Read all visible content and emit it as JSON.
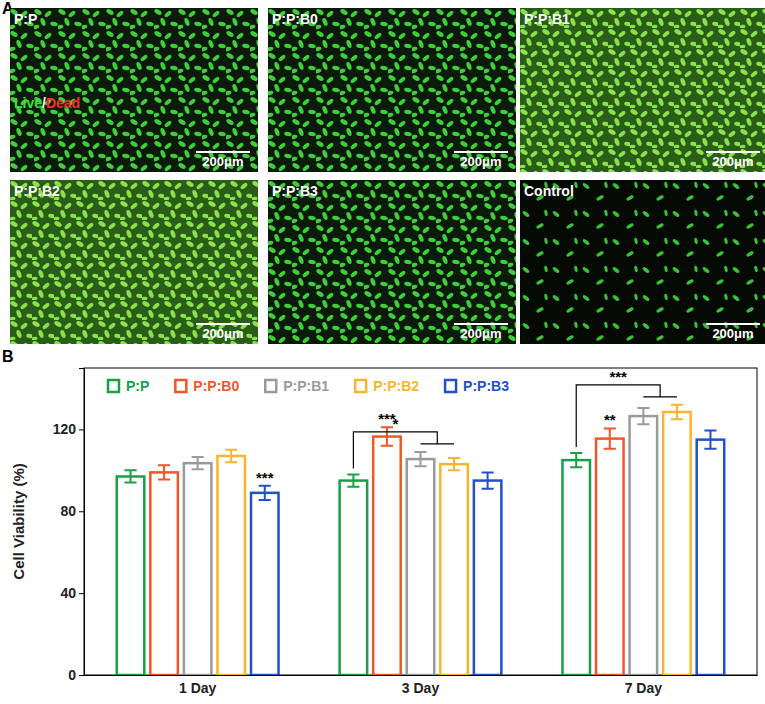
{
  "panel_labels": [
    "A",
    "B"
  ],
  "images": {
    "tiles": [
      "P:P",
      "P:P:B0",
      "P:P:B1",
      "P:P:B2",
      "P:P:B3",
      "Control"
    ],
    "stain": {
      "live": "Live",
      "separator": "/",
      "dead": "Dead"
    },
    "scale_bar": "200μm"
  },
  "chart_data": {
    "type": "bar",
    "y_label": "Cell Viability (%)",
    "categories": [
      "1 Day",
      "3 Day",
      "7 Day"
    ],
    "series": [
      {
        "name": "P:P",
        "color": "#16a047",
        "values": [
          97,
          95,
          105
        ],
        "errors": [
          3,
          3,
          3.5
        ]
      },
      {
        "name": "P:P:B0",
        "color": "#f0562a",
        "values": [
          99,
          116.5,
          115.5
        ],
        "errors": [
          3.5,
          4.5,
          5
        ]
      },
      {
        "name": "P:P:B1",
        "color": "#9a9a9a",
        "values": [
          103.5,
          105.5,
          126.5
        ],
        "errors": [
          3,
          3.5,
          4
        ]
      },
      {
        "name": "P:P:B2",
        "color": "#f7b52c",
        "values": [
          107,
          103,
          128.5
        ],
        "errors": [
          3,
          3,
          3.5
        ]
      },
      {
        "name": "P:P:B3",
        "color": "#2250c8",
        "values": [
          89,
          95,
          115
        ],
        "errors": [
          3.5,
          4,
          4.5
        ]
      }
    ],
    "ylim": [
      0,
      150
    ],
    "yticks": [
      0,
      40,
      80,
      120
    ],
    "grid": false,
    "legend": "top",
    "annotations": [
      {
        "text": "***",
        "category": "1 Day",
        "series": "P:P:B3"
      },
      {
        "text": "***",
        "category": "3 Day",
        "series": "P:P:B0"
      },
      {
        "text": "*",
        "category": "3 Day",
        "series": "P:P",
        "to": [
          "P:P:B1",
          "P:P:B2"
        ]
      },
      {
        "text": "**",
        "category": "7 Day",
        "series": "P:P:B0"
      },
      {
        "text": "***",
        "category": "7 Day",
        "series": "P:P",
        "to": [
          "P:P:B1",
          "P:P:B2"
        ]
      }
    ]
  }
}
